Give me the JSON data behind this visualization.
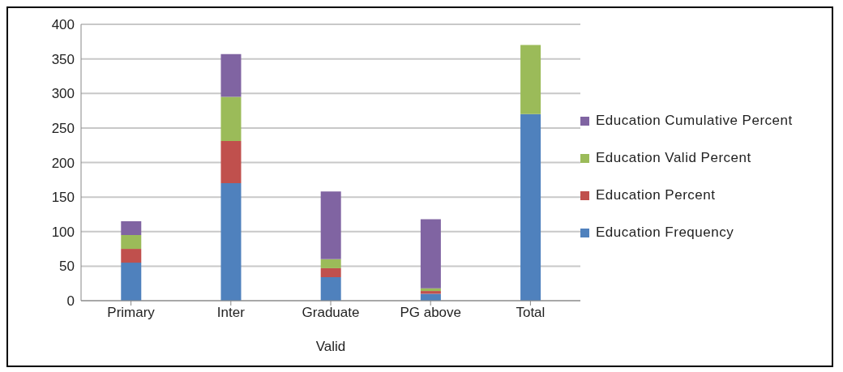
{
  "chart_data": {
    "type": "bar",
    "stacked": true,
    "xlabel": "Valid",
    "categories": [
      "Primary",
      "Inter",
      "Graduate",
      "PG above",
      "Total"
    ],
    "series": [
      {
        "name": "Education Frequency",
        "color": "#4f81bd",
        "values": [
          55,
          170,
          34,
          10,
          270
        ]
      },
      {
        "name": "Education Percent",
        "color": "#c0504d",
        "values": [
          20,
          61,
          13,
          4,
          null
        ]
      },
      {
        "name": "Education Valid Percent",
        "color": "#9bbb59",
        "values": [
          20,
          64,
          13,
          4,
          100
        ]
      },
      {
        "name": "Education Cumulative Percent",
        "color": "#8064a2",
        "values": [
          20,
          62,
          98,
          100,
          null
        ]
      }
    ],
    "ylim": [
      0,
      400
    ],
    "yticks": [
      0,
      50,
      100,
      150,
      200,
      250,
      300,
      350,
      400
    ],
    "grid": "y",
    "legend": "right"
  }
}
